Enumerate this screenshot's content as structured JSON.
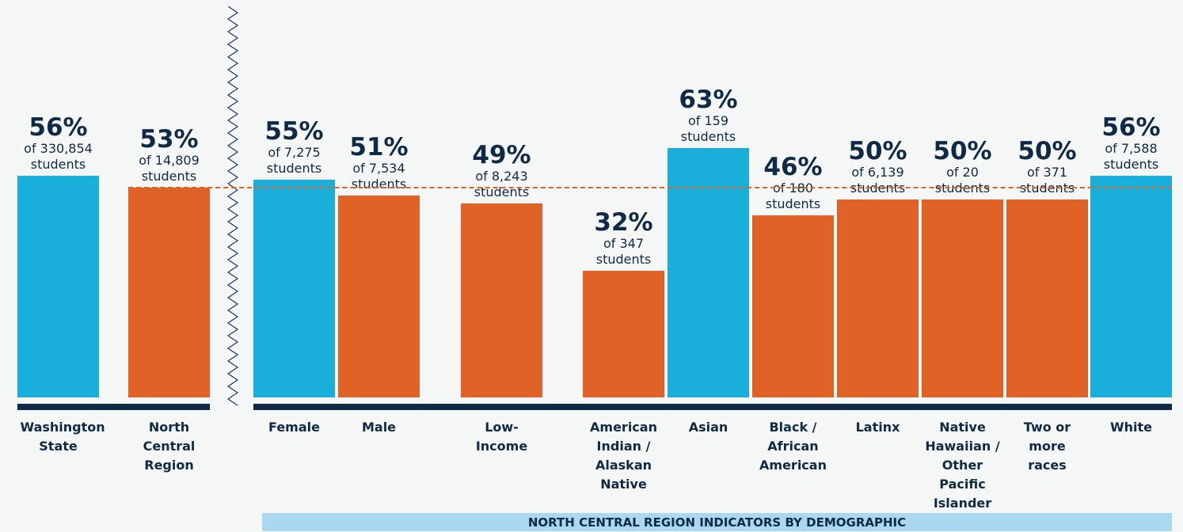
{
  "chart_data": {
    "type": "bar",
    "categories": [
      "Washington State",
      "North Central Region",
      "Female",
      "Male",
      "Low-Income",
      "American Indian / Alaskan Native",
      "Asian",
      "Black / African American",
      "Latinx",
      "Native Hawaiian / Other Pacific Islander",
      "Two or more races",
      "White"
    ],
    "values": [
      56,
      53,
      55,
      51,
      49,
      32,
      63,
      46,
      50,
      50,
      50,
      56
    ],
    "value_labels": [
      "56%",
      "53%",
      "55%",
      "51%",
      "49%",
      "32%",
      "63%",
      "46%",
      "50%",
      "50%",
      "50%",
      "56%"
    ],
    "sublabels": [
      "of 330,854 students",
      "of 14,809 students",
      "of 7,275 students",
      "of 7,534 students",
      "of 8,243 students",
      "of 347 students",
      "of 159 students",
      "of 180 students",
      "of 6,139 students",
      "of 20 students",
      "of 371 students",
      "of 7,588 students"
    ],
    "colors": [
      "#1aafdb",
      "#e06227",
      "#1aafdb",
      "#e06227",
      "#e06227",
      "#e06227",
      "#1aafdb",
      "#e06227",
      "#e06227",
      "#e06227",
      "#e06227",
      "#1aafdb"
    ],
    "group_label": "NORTH CENTRAL REGION INDICATORS BY DEMOGRAPHIC"
  }
}
